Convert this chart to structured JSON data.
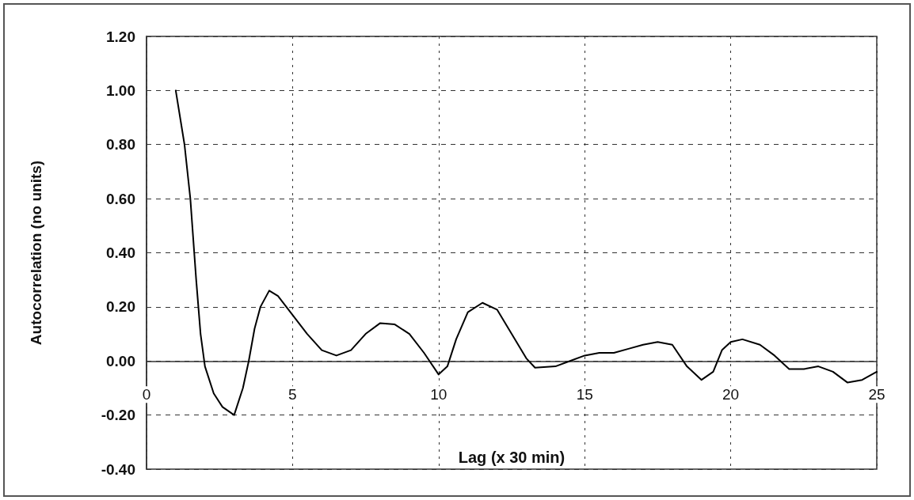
{
  "chart_data": {
    "type": "line",
    "xlabel": "Lag (x 30 min)",
    "ylabel": "Autocorrelation (no units)",
    "xlim": [
      0,
      25
    ],
    "xticks": [
      0,
      5,
      10,
      15,
      20,
      25
    ],
    "ylim": [
      -0.4,
      1.2
    ],
    "yticks": [
      {
        "value": -0.4,
        "label": "-0.40"
      },
      {
        "value": -0.2,
        "label": "-0.20"
      },
      {
        "value": 0,
        "label": "0.00"
      },
      {
        "value": 0.2,
        "label": "0.20"
      },
      {
        "value": 0.4,
        "label": "0.40"
      },
      {
        "value": 0.6,
        "label": "0.60"
      },
      {
        "value": 0.8,
        "label": "0.80"
      },
      {
        "value": 1,
        "label": "1.00"
      },
      {
        "value": 1.2,
        "label": "1.20"
      }
    ],
    "grid": true,
    "marker": "none",
    "line_style": "solid",
    "series": [
      {
        "color": "#000000",
        "x": [
          1,
          1.3,
          1.5,
          1.7,
          1.85,
          2,
          2.3,
          2.6,
          3,
          3.3,
          3.5,
          3.7,
          3.9,
          4.2,
          4.5,
          5,
          5.5,
          6,
          6.5,
          7,
          7.5,
          8,
          8.5,
          9,
          9.5,
          10,
          10.3,
          10.6,
          11,
          11.5,
          12,
          12.5,
          13,
          13.3,
          14,
          14.5,
          15,
          15.5,
          16,
          16.5,
          17,
          17.5,
          18,
          18.5,
          19,
          19.4,
          19.7,
          20,
          20.4,
          21,
          21.5,
          22,
          22.5,
          23,
          23.5,
          24,
          24.5,
          25
        ],
        "values": [
          1.0,
          0.8,
          0.6,
          0.3,
          0.1,
          -0.02,
          -0.12,
          -0.17,
          -0.2,
          -0.1,
          0.0,
          0.12,
          0.2,
          0.26,
          0.24,
          0.17,
          0.1,
          0.04,
          0.02,
          0.04,
          0.1,
          0.14,
          0.135,
          0.1,
          0.03,
          -0.05,
          -0.02,
          0.08,
          0.18,
          0.215,
          0.19,
          0.1,
          0.01,
          -0.025,
          -0.02,
          0.0,
          0.02,
          0.03,
          0.03,
          0.045,
          0.06,
          0.07,
          0.06,
          -0.02,
          -0.07,
          -0.04,
          0.04,
          0.07,
          0.08,
          0.06,
          0.02,
          -0.03,
          -0.03,
          -0.02,
          -0.04,
          -0.08,
          -0.07,
          -0.04
        ]
      }
    ]
  }
}
